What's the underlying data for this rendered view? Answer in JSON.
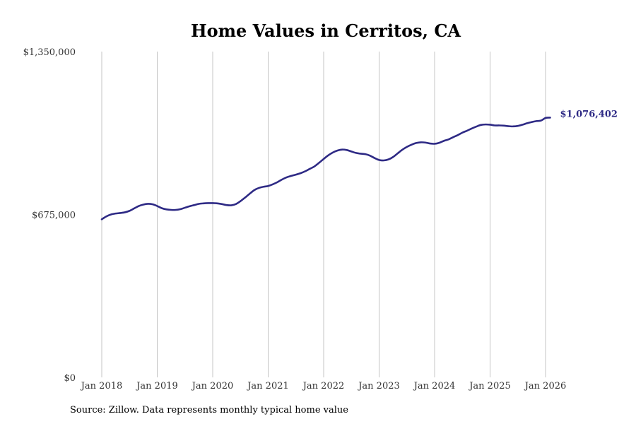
{
  "chart_data": {
    "type": "line",
    "title": "Home Values in Cerritos, CA",
    "xlabel": "",
    "ylabel": "",
    "ylim": [
      0,
      1350000
    ],
    "y_ticks": [
      0,
      675000,
      1350000
    ],
    "y_tick_labels": [
      "$0",
      "$675,000",
      "$1,350,000"
    ],
    "x_ticks": [
      2018,
      2019,
      2020,
      2021,
      2022,
      2023,
      2024,
      2025,
      2026
    ],
    "x_tick_labels": [
      "Jan 2018",
      "Jan 2019",
      "Jan 2020",
      "Jan 2021",
      "Jan 2022",
      "Jan 2023",
      "Jan 2024",
      "Jan 2025",
      "Jan 2026"
    ],
    "xlim": [
      2018,
      2026.083
    ],
    "grid": "vertical",
    "series": [
      {
        "name": "Typical home value",
        "color": "#2e2a85",
        "x": [
          2018.0,
          2018.083,
          2018.167,
          2018.25,
          2018.333,
          2018.417,
          2018.5,
          2018.583,
          2018.667,
          2018.75,
          2018.833,
          2018.917,
          2019.0,
          2019.083,
          2019.167,
          2019.25,
          2019.333,
          2019.417,
          2019.5,
          2019.583,
          2019.667,
          2019.75,
          2019.833,
          2019.917,
          2020.0,
          2020.083,
          2020.167,
          2020.25,
          2020.333,
          2020.417,
          2020.5,
          2020.583,
          2020.667,
          2020.75,
          2020.833,
          2020.917,
          2021.0,
          2021.083,
          2021.167,
          2021.25,
          2021.333,
          2021.417,
          2021.5,
          2021.583,
          2021.667,
          2021.75,
          2021.833,
          2021.917,
          2022.0,
          2022.083,
          2022.167,
          2022.25,
          2022.333,
          2022.417,
          2022.5,
          2022.583,
          2022.667,
          2022.75,
          2022.833,
          2022.917,
          2023.0,
          2023.083,
          2023.167,
          2023.25,
          2023.333,
          2023.417,
          2023.5,
          2023.583,
          2023.667,
          2023.75,
          2023.833,
          2023.917,
          2024.0,
          2024.083,
          2024.167,
          2024.25,
          2024.333,
          2024.417,
          2024.5,
          2024.583,
          2024.667,
          2024.75,
          2024.833,
          2024.917,
          2025.0,
          2025.083,
          2025.167,
          2025.25,
          2025.333,
          2025.417,
          2025.5,
          2025.583,
          2025.667,
          2025.75,
          2025.833,
          2025.917,
          2026.0,
          2026.083
        ],
        "values": [
          655000,
          667000,
          675000,
          679000,
          681000,
          684000,
          690000,
          700000,
          710000,
          716000,
          719000,
          717000,
          710000,
          701000,
          696000,
          694000,
          694000,
          697000,
          703000,
          709000,
          714000,
          719000,
          721000,
          722000,
          722000,
          721000,
          718000,
          714000,
          713000,
          718000,
          730000,
          745000,
          761000,
          776000,
          785000,
          790000,
          793000,
          800000,
          809000,
          820000,
          829000,
          835000,
          840000,
          846000,
          854000,
          864000,
          874000,
          889000,
          905000,
          920000,
          932000,
          940000,
          944000,
          942000,
          936000,
          930000,
          927000,
          925000,
          919000,
          909000,
          901000,
          899000,
          903000,
          913000,
          928000,
          943000,
          955000,
          964000,
          971000,
          974000,
          973000,
          969000,
          968000,
          972000,
          980000,
          986000,
          995000,
          1004000,
          1014000,
          1022000,
          1031000,
          1039000,
          1046000,
          1048000,
          1047000,
          1044000,
          1044000,
          1043000,
          1041000,
          1040000,
          1042000,
          1047000,
          1053000,
          1058000,
          1062000,
          1064000,
          1075000,
          1076402
        ],
        "end_label": "$1,076,402"
      }
    ],
    "source_note": "Source: Zillow. Data represents monthly typical home value"
  }
}
